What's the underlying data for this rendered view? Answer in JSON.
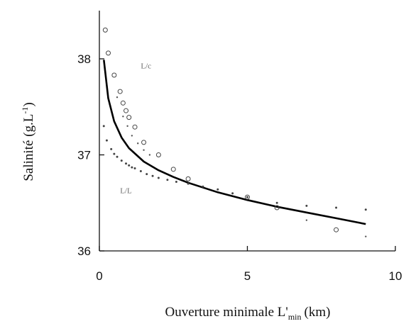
{
  "chart_data": {
    "type": "scatter",
    "title": "",
    "xlabel": "Ouverture minimale L'",
    "xlabel_subscript": "min",
    "xlabel_unit": "(km)",
    "ylabel": "Salinité (g.L",
    "ylabel_superscript": "-1",
    "ylabel_close": ")",
    "xlim": [
      0,
      10
    ],
    "ylim": [
      36,
      38.5
    ],
    "xticks": [
      0,
      5,
      10
    ],
    "yticks": [
      36,
      37,
      38
    ],
    "grid": false,
    "series_tags": [
      {
        "text": "L/c",
        "x": 1.4,
        "y": 37.9
      },
      {
        "text": "L/L",
        "x": 0.7,
        "y": 36.6
      }
    ],
    "series": [
      {
        "style": "solid-line",
        "color": "#000000",
        "x": [
          0.15,
          0.3,
          0.5,
          0.75,
          1.0,
          1.5,
          2.0,
          2.5,
          3.0,
          4.0,
          5.0,
          6.0,
          7.0,
          8.0,
          9.0
        ],
        "y": [
          37.99,
          37.59,
          37.35,
          37.18,
          37.07,
          36.93,
          36.84,
          36.77,
          36.71,
          36.61,
          36.53,
          36.46,
          36.4,
          36.34,
          36.28
        ]
      },
      {
        "style": "open-circles",
        "color": "#444444",
        "x": [
          0.2,
          0.3,
          0.5,
          0.7,
          0.8,
          0.9,
          1.0,
          1.2,
          1.5,
          2.0,
          2.5,
          3.0,
          5.0,
          6.0,
          8.0
        ],
        "y": [
          38.3,
          38.06,
          37.83,
          37.66,
          37.54,
          37.46,
          37.39,
          37.29,
          37.13,
          37.0,
          36.85,
          36.75,
          36.56,
          36.45,
          36.22
        ]
      },
      {
        "style": "dots",
        "color": "#444444",
        "x": [
          0.15,
          0.25,
          0.4,
          0.5,
          0.6,
          0.75,
          0.9,
          1.0,
          1.1,
          1.2,
          1.4,
          1.6,
          1.8,
          2.0,
          2.3,
          2.6,
          3.0,
          3.5,
          4.0,
          4.5,
          5.0,
          6.0,
          7.0,
          8.0,
          9.0
        ],
        "y": [
          37.3,
          37.15,
          37.06,
          37.01,
          36.98,
          36.94,
          36.91,
          36.89,
          36.87,
          36.86,
          36.83,
          36.8,
          36.78,
          36.76,
          36.74,
          36.72,
          36.7,
          36.67,
          36.64,
          36.6,
          36.56,
          36.5,
          36.47,
          36.45,
          36.43
        ]
      },
      {
        "style": "small-dots",
        "color": "#555555",
        "x": [
          0.6,
          0.8,
          0.95,
          1.1,
          1.3,
          1.5,
          1.7,
          7.0,
          9.0
        ],
        "y": [
          37.6,
          37.4,
          37.3,
          37.2,
          37.12,
          37.05,
          37.0,
          36.32,
          36.15
        ]
      }
    ]
  }
}
